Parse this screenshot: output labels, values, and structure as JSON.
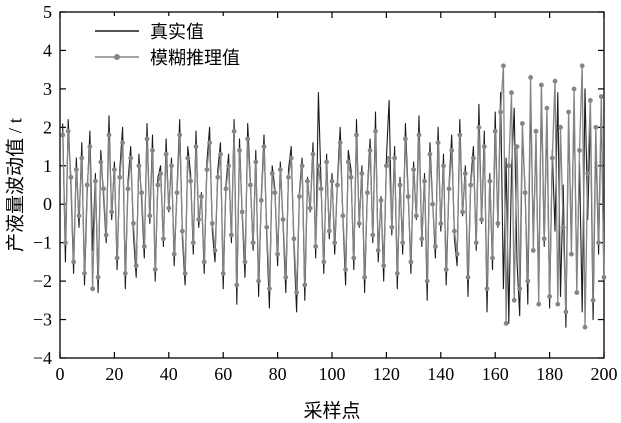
{
  "figure": {
    "xlabel": "采样点",
    "ylabel": "产液量波动值 / t",
    "legend": [
      {
        "label": "真实值",
        "color": "#1a1a1a",
        "marker": false
      },
      {
        "label": "模糊推理值",
        "color": "#858585",
        "marker": true
      }
    ]
  },
  "colors": {
    "axis": "#000000",
    "true_series": "#1a1a1a",
    "fuzzy_series": "#858585",
    "background": "#ffffff"
  },
  "chart_data": {
    "type": "line",
    "title": "",
    "xlabel": "采样点",
    "ylabel": "产液量波动值 / t",
    "xlim": [
      0,
      200
    ],
    "ylim": [
      -4,
      5
    ],
    "x_ticks": [
      0,
      20,
      40,
      60,
      80,
      100,
      120,
      140,
      160,
      180,
      200
    ],
    "y_ticks": [
      -4,
      -3,
      -2,
      -1,
      0,
      1,
      2,
      3,
      4,
      5
    ],
    "grid": false,
    "legend_position": "top-left",
    "x_start": 1,
    "x_step": 1,
    "series": [
      {
        "name": "真实值",
        "style": "solid",
        "marker": "none",
        "values": [
          2.1,
          -1.5,
          2.2,
          0.5,
          -1.8,
          1.2,
          -0.6,
          1.6,
          -2.1,
          0.3,
          1.9,
          -1.2,
          0.8,
          -2.3,
          1.4,
          0.2,
          -1.0,
          2.3,
          -0.4,
          1.1,
          -1.7,
          0.9,
          2.0,
          -2.2,
          0.6,
          1.5,
          -0.8,
          -1.9,
          1.3,
          0.1,
          -1.4,
          2.1,
          -0.5,
          1.8,
          -2.0,
          0.7,
          1.0,
          -1.1,
          1.7,
          -0.2,
          1.2,
          -1.6,
          0.4,
          2.2,
          -0.9,
          -2.1,
          1.5,
          0.8,
          -1.3,
          1.9,
          -0.6,
          0.3,
          -1.8,
          1.1,
          2.0,
          -0.7,
          -1.5,
          0.9,
          1.6,
          -2.2,
          0.5,
          1.3,
          -1.0,
          2.2,
          -2.6,
          1.7,
          -0.3,
          -1.9,
          2.1,
          0.6,
          -1.2,
          1.4,
          -2.4,
          0.2,
          1.8,
          -0.8,
          -2.7,
          1.0,
          0.4,
          -1.6,
          1.1,
          -0.5,
          -2.3,
          0.9,
          1.5,
          -1.1,
          -2.8,
          0.3,
          1.2,
          -2.5,
          0.7,
          -0.2,
          1.6,
          -1.4,
          2.9,
          0.5,
          -1.8,
          1.3,
          -0.9,
          0.8,
          -1.3,
          0.6,
          2.0,
          -0.4,
          -2.1,
          1.4,
          0.9,
          -1.7,
          2.2,
          -0.6,
          1.0,
          -2.3,
          0.4,
          1.7,
          -1.0,
          2.4,
          -1.5,
          0.2,
          -2.0,
          1.2,
          2.7,
          -0.8,
          1.5,
          -2.2,
          0.7,
          -1.3,
          2.1,
          0.3,
          -1.8,
          1.1,
          -0.4,
          2.3,
          -1.1,
          0.8,
          -2.5,
          1.6,
          0.1,
          -1.4,
          2.0,
          -0.7,
          1.3,
          -2.1,
          0.5,
          1.8,
          -0.9,
          -1.6,
          2.2,
          -0.3,
          1.0,
          -2.4,
          0.6,
          1.5,
          -1.2,
          2.6,
          -0.5,
          1.9,
          -2.8,
          0.8,
          -1.7,
          2.4,
          -0.6,
          2.9,
          -2.2,
          1.2,
          -3.1,
          0.9,
          2.5,
          -1.5,
          -2.9,
          1.8,
          0.4,
          -2.6,
          2.8,
          -0.9,
          1.6,
          -2.3,
          3.0,
          -1.1,
          2.2,
          -2.7,
          1.4,
          -0.7,
          2.9,
          -2.4,
          0.5,
          -3.2,
          2.1,
          -1.0,
          2.6,
          -2.0,
          1.1,
          -2.8,
          3.0,
          -0.4,
          2.3,
          -3.0,
          1.7,
          -1.3,
          2.5,
          -2.2
        ]
      },
      {
        "name": "模糊推理值",
        "style": "solid",
        "marker": "circle",
        "values": [
          1.8,
          -1.0,
          1.9,
          0.7,
          -1.5,
          0.9,
          -0.3,
          1.2,
          -1.8,
          0.5,
          1.5,
          -2.2,
          0.6,
          -1.9,
          1.1,
          0.4,
          -0.8,
          1.8,
          -0.2,
          0.9,
          -1.4,
          0.7,
          1.6,
          -1.8,
          0.4,
          1.2,
          -0.5,
          -1.6,
          1.0,
          0.3,
          -1.1,
          1.7,
          -0.3,
          1.4,
          -1.7,
          0.5,
          0.8,
          -0.9,
          1.3,
          -0.1,
          1.0,
          -1.3,
          0.3,
          1.8,
          -0.7,
          -1.8,
          1.2,
          0.6,
          -1.0,
          1.5,
          -0.4,
          0.2,
          -1.5,
          0.9,
          1.6,
          -0.5,
          -1.2,
          0.7,
          1.3,
          -1.8,
          0.4,
          1.0,
          -0.8,
          1.9,
          -2.1,
          1.4,
          -0.2,
          -1.5,
          1.7,
          0.5,
          -1.0,
          1.1,
          -2.0,
          0.1,
          1.5,
          -0.6,
          -2.2,
          0.8,
          0.3,
          -1.3,
          0.9,
          -0.4,
          -1.9,
          0.7,
          1.2,
          -0.9,
          -2.3,
          0.2,
          1.0,
          -2.1,
          0.6,
          -0.1,
          1.3,
          -1.1,
          1.0,
          0.4,
          -1.5,
          1.1,
          -0.7,
          0.6,
          -1.0,
          0.5,
          1.6,
          -0.3,
          -1.7,
          1.1,
          0.7,
          -1.4,
          1.8,
          -0.5,
          0.8,
          -1.9,
          0.3,
          1.4,
          -0.8,
          1.9,
          -1.2,
          0.1,
          -1.6,
          1.0,
          1.2,
          -0.6,
          1.2,
          -1.8,
          0.5,
          -1.0,
          1.7,
          0.2,
          -1.5,
          0.9,
          -0.3,
          1.8,
          -0.9,
          0.6,
          -2.0,
          1.3,
          0.0,
          -1.1,
          1.6,
          -0.5,
          1.0,
          -1.7,
          0.4,
          1.4,
          -0.7,
          -1.3,
          1.8,
          -0.2,
          0.8,
          -1.9,
          0.5,
          1.2,
          -1.0,
          2.0,
          -0.4,
          1.5,
          -2.2,
          0.6,
          -1.4,
          1.9,
          -0.5,
          2.4,
          3.6,
          -3.1,
          1.0,
          2.9,
          -2.5,
          1.5,
          -2.2,
          2.1,
          0.3,
          -2.0,
          3.3,
          -1.2,
          1.9,
          -2.6,
          3.1,
          -0.9,
          2.5,
          -2.4,
          1.2,
          3.2,
          -2.6,
          2.0,
          -0.6,
          -2.8,
          2.4,
          -1.3,
          3.0,
          -2.3,
          1.4,
          3.6,
          -3.2,
          0.8,
          2.7,
          -2.5,
          2.0,
          -1.0,
          2.8,
          -1.9
        ]
      }
    ]
  }
}
